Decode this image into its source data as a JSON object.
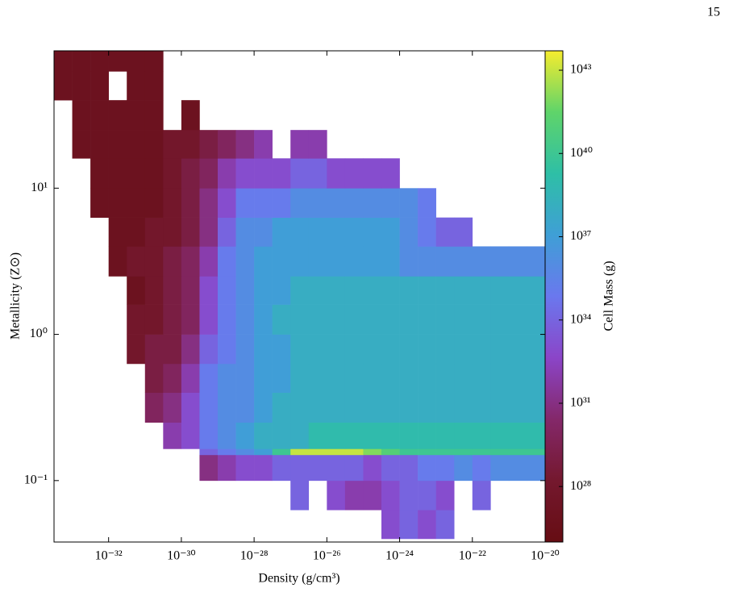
{
  "page_number": "15",
  "chart_data": {
    "type": "histogram2d",
    "xlabel": "Density  (g/cm³)",
    "ylabel": "Metallicity  (Z⊙)",
    "colorbar_label": "Cell Mass  (g)",
    "xscale": "log",
    "yscale": "log",
    "cscale": "log",
    "xlim": [
      3.16e-34,
      1e-20
    ],
    "ylim": [
      0.038,
      87
    ],
    "clim": [
      1e+26,
      5e+43
    ],
    "xticks": [
      {
        "value": 1e-32,
        "label": "10⁻³²"
      },
      {
        "value": 1e-30,
        "label": "10⁻³⁰"
      },
      {
        "value": 1e-28,
        "label": "10⁻²⁸"
      },
      {
        "value": 1e-26,
        "label": "10⁻²⁶"
      },
      {
        "value": 1e-24,
        "label": "10⁻²⁴"
      },
      {
        "value": 1e-22,
        "label": "10⁻²²"
      },
      {
        "value": 1e-20,
        "label": "10⁻²⁰"
      }
    ],
    "yticks": [
      {
        "value": 0.1,
        "label": "10⁻¹"
      },
      {
        "value": 1,
        "label": "10⁰"
      },
      {
        "value": 10,
        "label": "10¹"
      }
    ],
    "cticks": [
      {
        "value": 1e+28,
        "label": "10²⁸"
      },
      {
        "value": 1e+31,
        "label": "10³¹"
      },
      {
        "value": 1e+34,
        "label": "10³⁴"
      },
      {
        "value": 1e+37,
        "label": "10³⁷"
      },
      {
        "value": 1e+40,
        "label": "10⁴⁰"
      },
      {
        "value": 1e+43,
        "label": "10⁴³"
      }
    ],
    "colormap": [
      "#660d13",
      "#74182e",
      "#84286a",
      "#8b45c8",
      "#6a78ee",
      "#3f9fd6",
      "#2ebfa6",
      "#5fd46a",
      "#f6ec2e"
    ],
    "x_bins": [
      3.16e-34,
      1e-33,
      3.16e-33,
      1e-32,
      3.16e-32,
      1e-31,
      3.16e-31,
      1e-30,
      3.16e-30,
      1e-29,
      3.16e-29,
      1e-28,
      3.16e-28,
      1e-27,
      3.16e-27,
      1e-26,
      3.16e-26,
      1e-25,
      3.16e-25,
      1e-24,
      3.16e-24,
      1e-23,
      3.16e-23,
      1e-22,
      3.16e-22,
      1e-21,
      3.16e-21,
      1e-20
    ],
    "y_bins": [
      0.04,
      0.063,
      0.1,
      0.15,
      0.165,
      0.25,
      0.4,
      0.63,
      1,
      1.6,
      2.5,
      4,
      6.3,
      10,
      16,
      25,
      40,
      63,
      100
    ],
    "values": [
      [
        null,
        null,
        null,
        null,
        null,
        null,
        null,
        null,
        null,
        null,
        null,
        null,
        null,
        null,
        null,
        null,
        null,
        null,
        1e+33,
        1e+34,
        1e+33,
        1e+34,
        null,
        null,
        null,
        null,
        null
      ],
      [
        null,
        null,
        null,
        null,
        null,
        null,
        null,
        null,
        null,
        null,
        null,
        null,
        null,
        1e+34,
        null,
        1e+33,
        1e+32,
        1e+32,
        1e+33,
        1e+34,
        1e+34,
        1e+33,
        null,
        1e+34,
        null,
        null,
        null
      ],
      [
        null,
        null,
        null,
        null,
        null,
        null,
        null,
        null,
        1e+31,
        1e+32,
        1e+33,
        1e+33,
        1e+34,
        1e+34,
        1e+34,
        1e+34,
        1e+34,
        1e+33,
        1e+34,
        1e+34,
        1e+35,
        1e+35,
        1e+36,
        1e+35,
        1e+36,
        1e+36,
        1e+36
      ],
      [
        null,
        null,
        null,
        null,
        null,
        null,
        null,
        null,
        1e+34,
        1e+35,
        1e+36,
        1e+37,
        1e+40,
        1e+43,
        1e+43,
        1e+43,
        1e+43,
        1e+42,
        1e+41,
        1e+40,
        1e+40,
        1e+40,
        1e+40,
        1e+40,
        1e+40,
        1e+40,
        1e+40
      ],
      [
        null,
        null,
        null,
        null,
        null,
        null,
        1e+32,
        1e+33,
        1e+35,
        1e+36,
        1e+37,
        1e+38,
        1e+38,
        1e+38,
        1e+39,
        1e+39,
        1e+39,
        1e+39,
        1e+39,
        1e+39,
        1e+39,
        1e+39,
        1e+39,
        1e+39,
        1e+39,
        1e+39,
        1e+39
      ],
      [
        null,
        null,
        null,
        null,
        null,
        1e+30,
        1e+31,
        1e+33,
        1e+35,
        1e+36,
        1e+36,
        1e+37,
        1e+38,
        1e+38,
        1e+38,
        1e+38,
        1e+38,
        1e+38,
        1e+38,
        1e+38,
        1e+38,
        1e+38,
        1e+38,
        1e+38,
        1e+38,
        1e+38,
        1e+38
      ],
      [
        null,
        null,
        null,
        null,
        null,
        1e+29,
        1e+30,
        1e+32,
        1e+35,
        1e+36,
        1e+36,
        1e+37,
        1e+37,
        1e+38,
        1e+38,
        1e+38,
        1e+38,
        1e+38,
        1e+38,
        1e+38,
        1e+38,
        1e+38,
        1e+38,
        1e+38,
        1e+38,
        1e+38,
        1e+38
      ],
      [
        null,
        null,
        null,
        null,
        1e+28,
        1e+29,
        1e+29,
        1e+31,
        1e+34,
        1e+35,
        1e+36,
        1e+37,
        1e+37,
        1e+38,
        1e+38,
        1e+38,
        1e+38,
        1e+38,
        1e+38,
        1e+38,
        1e+38,
        1e+38,
        1e+38,
        1e+38,
        1e+38,
        1e+38,
        1e+38
      ],
      [
        null,
        null,
        null,
        null,
        1e+28,
        1e+28,
        1e+29,
        1e+30,
        1e+33,
        1e+35,
        1e+36,
        1e+37,
        1e+38,
        1e+38,
        1e+38,
        1e+38,
        1e+38,
        1e+38,
        1e+38,
        1e+38,
        1e+38,
        1e+38,
        1e+38,
        1e+38,
        1e+38,
        1e+38,
        1e+38
      ],
      [
        null,
        null,
        null,
        null,
        1e+27,
        1e+28,
        1e+29,
        1e+30,
        1e+33,
        1e+35,
        1e+36,
        1e+37,
        1e+37,
        1e+38,
        1e+38,
        1e+38,
        1e+38,
        1e+38,
        1e+38,
        1e+38,
        1e+38,
        1e+38,
        1e+38,
        1e+38,
        1e+38,
        1e+38,
        1e+38
      ],
      [
        null,
        null,
        null,
        1e+27,
        1e+28,
        1e+28,
        1e+29,
        1e+30,
        1e+32,
        1e+35,
        1e+36,
        1e+37,
        1e+37,
        1e+37,
        1e+37,
        1e+37,
        1e+37,
        1e+37,
        1e+37,
        1e+36,
        1e+36,
        1e+36,
        1e+36,
        1e+36,
        1e+36,
        1e+36,
        1e+36
      ],
      [
        null,
        null,
        null,
        1e+27,
        1e+27,
        1e+28,
        1e+28,
        1e+29,
        1e+31,
        1e+34,
        1e+36,
        1e+36,
        1e+37,
        1e+37,
        1e+37,
        1e+37,
        1e+37,
        1e+37,
        1e+37,
        1e+36,
        1e+35,
        1e+34,
        1e+34,
        null,
        null,
        null,
        null
      ],
      [
        null,
        null,
        1e+27,
        1e+27,
        1e+27,
        1e+27,
        1e+28,
        1e+29,
        1e+31,
        1e+33,
        1e+35,
        1e+35,
        1e+35,
        1e+36,
        1e+36,
        1e+36,
        1e+36,
        1e+36,
        1e+36,
        1e+36,
        1e+35,
        null,
        null,
        null,
        null,
        null,
        null
      ],
      [
        null,
        null,
        1e+27,
        1e+27,
        1e+27,
        1e+27,
        1e+28,
        1e+29,
        1e+30,
        1e+32,
        1e+33,
        1e+33,
        1e+33,
        1e+34,
        1e+34,
        1e+33,
        1e+33,
        1e+33,
        1e+33,
        null,
        null,
        null,
        null,
        null,
        null,
        null,
        null
      ],
      [
        null,
        1e+27,
        1e+27,
        1e+27,
        1e+27,
        1e+27,
        1e+28,
        1e+28,
        1e+29,
        1e+30,
        1e+31,
        1e+32,
        null,
        1e+32,
        1e+32,
        null,
        null,
        null,
        null,
        null,
        null,
        null,
        null,
        null,
        null,
        null,
        null
      ],
      [
        null,
        1e+27,
        1e+27,
        1e+27,
        1e+27,
        1e+27,
        null,
        1e+27,
        null,
        null,
        null,
        null,
        null,
        null,
        null,
        null,
        null,
        null,
        null,
        null,
        null,
        null,
        null,
        null,
        null,
        null,
        null
      ],
      [
        1e+27,
        1e+27,
        1e+27,
        null,
        1e+27,
        1e+27,
        null,
        null,
        null,
        null,
        null,
        null,
        null,
        null,
        null,
        null,
        null,
        null,
        null,
        null,
        null,
        null,
        null,
        null,
        null,
        null,
        null
      ],
      [
        1e+27,
        1e+27,
        1e+27,
        1e+27,
        1e+27,
        1e+27,
        null,
        null,
        null,
        null,
        null,
        null,
        null,
        null,
        null,
        null,
        null,
        null,
        null,
        null,
        null,
        null,
        null,
        null,
        null,
        null,
        null
      ]
    ]
  }
}
